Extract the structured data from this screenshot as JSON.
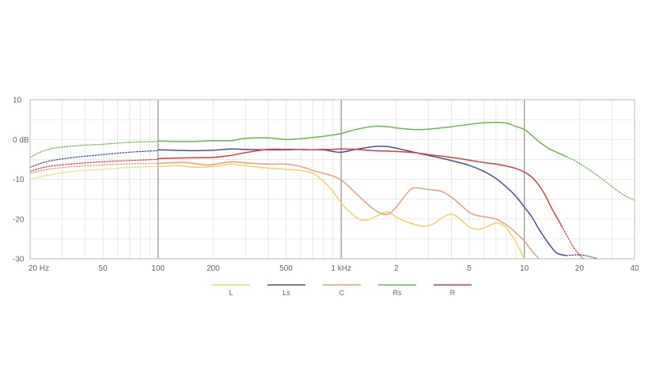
{
  "chart_data": {
    "type": "line",
    "title": "",
    "xlabel": "",
    "ylabel": "",
    "x_scale": "log",
    "xlim": [
      20,
      40000
    ],
    "ylim": [
      -30,
      10
    ],
    "grid": true,
    "legend_position": "bottom",
    "x_ticks": [
      {
        "value": 20,
        "label": "20 Hz"
      },
      {
        "value": 50,
        "label": "50"
      },
      {
        "value": 100,
        "label": "100"
      },
      {
        "value": 200,
        "label": "200"
      },
      {
        "value": 500,
        "label": "500"
      },
      {
        "value": 1000,
        "label": "1 kHz"
      },
      {
        "value": 2000,
        "label": "2"
      },
      {
        "value": 5000,
        "label": "5"
      },
      {
        "value": 10000,
        "label": "10"
      },
      {
        "value": 20000,
        "label": "20"
      },
      {
        "value": 40000,
        "label": "40"
      }
    ],
    "y_ticks": [
      {
        "value": 10,
        "label": "10"
      },
      {
        "value": 0,
        "label": "0 dB"
      },
      {
        "value": -10,
        "label": "-10"
      },
      {
        "value": -20,
        "label": "-20"
      },
      {
        "value": -30,
        "label": "-30"
      }
    ],
    "major_vlines": [
      100,
      1000,
      10000
    ],
    "series": [
      {
        "name": "L",
        "color": "#f2d35a",
        "dotted_low": [
          [
            20,
            -10
          ],
          [
            25,
            -9
          ],
          [
            35,
            -8
          ],
          [
            50,
            -7.5
          ],
          [
            70,
            -7
          ],
          [
            100,
            -6.8
          ]
        ],
        "solid": [
          [
            100,
            -6.8
          ],
          [
            130,
            -6.6
          ],
          [
            160,
            -7
          ],
          [
            200,
            -6.8
          ],
          [
            250,
            -6.2
          ],
          [
            300,
            -6.6
          ],
          [
            400,
            -7.2
          ],
          [
            500,
            -7.5
          ],
          [
            600,
            -7.8
          ],
          [
            700,
            -8.5
          ],
          [
            800,
            -10.5
          ],
          [
            900,
            -13
          ],
          [
            1000,
            -16
          ],
          [
            1100,
            -18
          ],
          [
            1250,
            -20
          ],
          [
            1400,
            -20.2
          ],
          [
            1600,
            -19
          ],
          [
            1800,
            -18.2
          ],
          [
            2000,
            -19.5
          ],
          [
            2300,
            -20.8
          ],
          [
            2800,
            -21.8
          ],
          [
            3200,
            -21.2
          ],
          [
            3600,
            -19.5
          ],
          [
            4000,
            -18.8
          ],
          [
            4400,
            -19.8
          ],
          [
            5000,
            -22
          ],
          [
            5600,
            -22.6
          ],
          [
            6200,
            -22
          ],
          [
            7000,
            -21
          ],
          [
            7800,
            -21.8
          ],
          [
            8500,
            -24
          ],
          [
            9300,
            -27
          ],
          [
            10000,
            -30
          ]
        ],
        "dotted_high": []
      },
      {
        "name": "Ls",
        "color": "#4a4f9a",
        "dotted_low": [
          [
            20,
            -7
          ],
          [
            25,
            -5.5
          ],
          [
            35,
            -4.5
          ],
          [
            50,
            -3.8
          ],
          [
            70,
            -3.2
          ],
          [
            100,
            -2.8
          ]
        ],
        "solid": [
          [
            100,
            -2.6
          ],
          [
            150,
            -2.8
          ],
          [
            200,
            -2.7
          ],
          [
            250,
            -2.4
          ],
          [
            300,
            -2.5
          ],
          [
            400,
            -2.6
          ],
          [
            500,
            -2.6
          ],
          [
            600,
            -2.5
          ],
          [
            700,
            -2.6
          ],
          [
            800,
            -2.6
          ],
          [
            900,
            -3
          ],
          [
            1000,
            -3.2
          ],
          [
            1200,
            -2.5
          ],
          [
            1400,
            -2
          ],
          [
            1600,
            -1.7
          ],
          [
            1800,
            -1.8
          ],
          [
            2000,
            -2.2
          ],
          [
            2500,
            -3.2
          ],
          [
            3000,
            -4
          ],
          [
            4000,
            -5.3
          ],
          [
            5000,
            -6.5
          ],
          [
            6000,
            -8
          ],
          [
            7000,
            -9.8
          ],
          [
            8000,
            -12
          ],
          [
            9000,
            -14.3
          ],
          [
            10000,
            -17
          ],
          [
            11000,
            -19.5
          ],
          [
            12000,
            -22.5
          ],
          [
            13500,
            -26
          ],
          [
            15000,
            -28.5
          ],
          [
            17000,
            -29.2
          ]
        ],
        "dotted_high": [
          [
            17000,
            -29.2
          ],
          [
            20000,
            -29
          ],
          [
            23000,
            -29.5
          ],
          [
            25000,
            -30
          ]
        ]
      },
      {
        "name": "C",
        "color": "#ee9b76",
        "dotted_low": [
          [
            20,
            -8.5
          ],
          [
            25,
            -7.5
          ],
          [
            35,
            -6.8
          ],
          [
            50,
            -6.4
          ],
          [
            70,
            -6.1
          ],
          [
            100,
            -6
          ]
        ],
        "solid": [
          [
            100,
            -6
          ],
          [
            140,
            -5.8
          ],
          [
            180,
            -6.4
          ],
          [
            200,
            -6.3
          ],
          [
            250,
            -5.6
          ],
          [
            300,
            -5.9
          ],
          [
            400,
            -6.2
          ],
          [
            500,
            -6.2
          ],
          [
            600,
            -6.8
          ],
          [
            700,
            -7.8
          ],
          [
            800,
            -8.5
          ],
          [
            900,
            -9.2
          ],
          [
            1000,
            -10.2
          ],
          [
            1100,
            -11.8
          ],
          [
            1300,
            -15
          ],
          [
            1500,
            -17.5
          ],
          [
            1700,
            -18.8
          ],
          [
            1850,
            -18.5
          ],
          [
            2000,
            -17
          ],
          [
            2200,
            -14.5
          ],
          [
            2400,
            -12.5
          ],
          [
            2600,
            -12.2
          ],
          [
            3000,
            -12.6
          ],
          [
            3500,
            -13
          ],
          [
            4000,
            -14.5
          ],
          [
            4500,
            -16.5
          ],
          [
            5000,
            -18.3
          ],
          [
            5500,
            -19.1
          ],
          [
            6000,
            -19.4
          ],
          [
            7000,
            -20
          ],
          [
            8000,
            -21.5
          ],
          [
            9000,
            -23.5
          ],
          [
            10000,
            -25.5
          ],
          [
            11000,
            -28
          ],
          [
            12000,
            -30
          ]
        ],
        "dotted_high": []
      },
      {
        "name": "Rs",
        "color": "#6db84e",
        "dotted_low": [
          [
            20,
            -4.5
          ],
          [
            25,
            -2.5
          ],
          [
            35,
            -1.6
          ],
          [
            50,
            -1.2
          ],
          [
            70,
            -0.7
          ],
          [
            100,
            -0.5
          ]
        ],
        "solid": [
          [
            100,
            -0.4
          ],
          [
            150,
            -0.5
          ],
          [
            200,
            -0.3
          ],
          [
            250,
            -0.3
          ],
          [
            300,
            0.3
          ],
          [
            400,
            0.4
          ],
          [
            500,
            0
          ],
          [
            600,
            0.2
          ],
          [
            700,
            0.5
          ],
          [
            800,
            0.8
          ],
          [
            1000,
            1.5
          ],
          [
            1200,
            2.5
          ],
          [
            1500,
            3.3
          ],
          [
            1800,
            3.2
          ],
          [
            2000,
            2.9
          ],
          [
            2500,
            2.5
          ],
          [
            3000,
            2.6
          ],
          [
            4000,
            3.2
          ],
          [
            5000,
            3.8
          ],
          [
            6000,
            4.2
          ],
          [
            7000,
            4.3
          ],
          [
            8000,
            4.1
          ],
          [
            9000,
            3.3
          ],
          [
            10000,
            2.5
          ],
          [
            11000,
            1
          ],
          [
            12000,
            -0.5
          ],
          [
            13500,
            -2.2
          ],
          [
            15000,
            -3.2
          ],
          [
            17000,
            -4.3
          ]
        ],
        "dotted_high": [
          [
            17000,
            -4.3
          ],
          [
            20000,
            -6
          ],
          [
            25000,
            -9
          ],
          [
            30000,
            -11.8
          ],
          [
            35000,
            -14
          ],
          [
            40000,
            -15.3
          ]
        ]
      },
      {
        "name": "R",
        "color": "#dd3c3c",
        "dotted_low": [
          [
            20,
            -8
          ],
          [
            25,
            -6.8
          ],
          [
            35,
            -6.1
          ],
          [
            50,
            -5.6
          ],
          [
            70,
            -5.3
          ],
          [
            100,
            -5
          ]
        ],
        "solid": [
          [
            100,
            -4.8
          ],
          [
            150,
            -4.6
          ],
          [
            200,
            -4.5
          ],
          [
            250,
            -4
          ],
          [
            300,
            -3.3
          ],
          [
            400,
            -2.5
          ],
          [
            500,
            -2.5
          ],
          [
            600,
            -2.5
          ],
          [
            700,
            -2.6
          ],
          [
            800,
            -2.5
          ],
          [
            900,
            -2.5
          ],
          [
            1000,
            -2.4
          ],
          [
            1200,
            -2.5
          ],
          [
            1500,
            -2.8
          ],
          [
            2000,
            -3
          ],
          [
            2500,
            -3.3
          ],
          [
            3000,
            -3.8
          ],
          [
            4000,
            -4.5
          ],
          [
            5000,
            -5.2
          ],
          [
            6000,
            -5.8
          ],
          [
            7000,
            -6.2
          ],
          [
            8000,
            -6.7
          ],
          [
            9000,
            -7.3
          ],
          [
            10000,
            -8.2
          ],
          [
            11000,
            -9.5
          ],
          [
            12000,
            -11.5
          ],
          [
            13000,
            -14
          ],
          [
            14000,
            -17
          ],
          [
            15000,
            -19.5
          ],
          [
            16000,
            -21.8
          ]
        ],
        "dotted_high": [
          [
            16000,
            -21.8
          ],
          [
            17000,
            -24
          ],
          [
            18500,
            -27
          ],
          [
            20000,
            -29
          ],
          [
            21000,
            -30
          ]
        ]
      }
    ]
  }
}
